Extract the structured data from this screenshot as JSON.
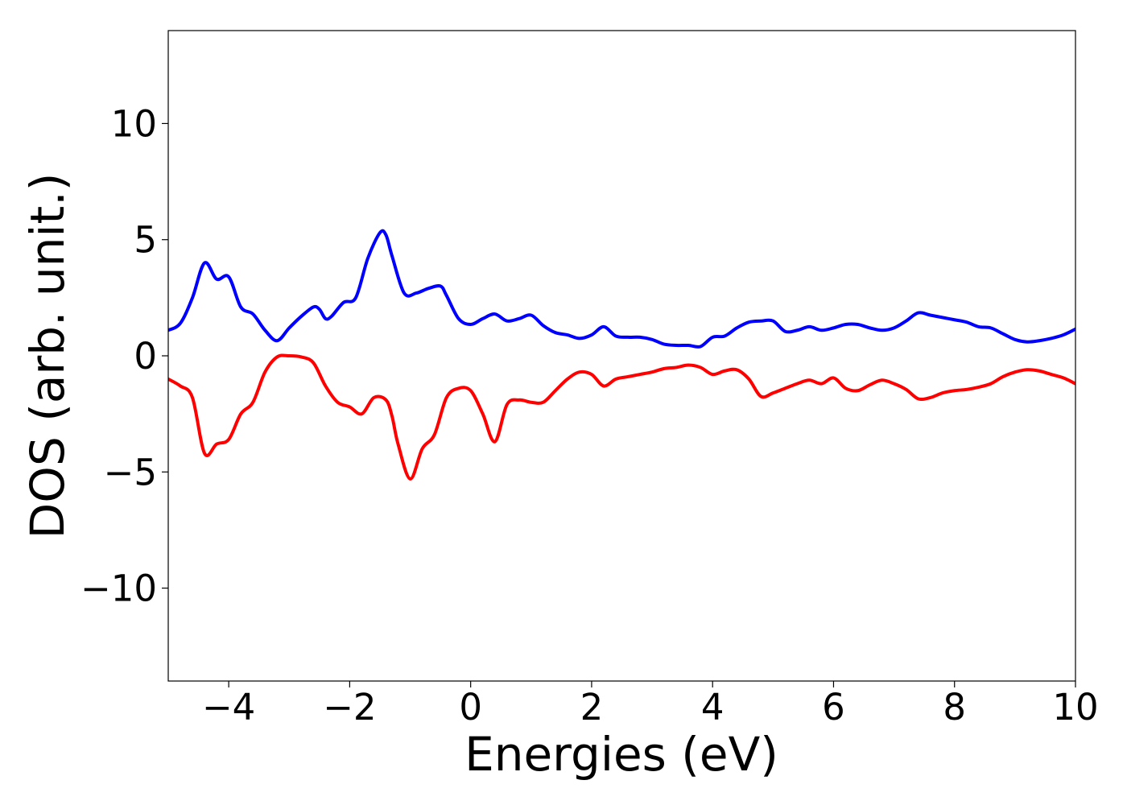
{
  "chart_data": {
    "type": "line",
    "title": "",
    "xlabel": "Energies (eV)",
    "ylabel": "DOS (arb. unit.)",
    "xlim": [
      -5,
      10
    ],
    "ylim": [
      -14,
      14
    ],
    "xticks": [
      -4,
      -2,
      0,
      2,
      4,
      6,
      8,
      10
    ],
    "xtick_labels": [
      "−4",
      "−2",
      "0",
      "2",
      "4",
      "6",
      "8",
      "10"
    ],
    "yticks": [
      -10,
      -5,
      0,
      5,
      10
    ],
    "ytick_labels": [
      "−10",
      "−5",
      "0",
      "5",
      "10"
    ],
    "grid": false,
    "legend": "none",
    "series": [
      {
        "color": "#0000ff",
        "x": [
          -5.0,
          -4.8,
          -4.6,
          -4.4,
          -4.2,
          -4.0,
          -3.8,
          -3.6,
          -3.4,
          -3.2,
          -3.0,
          -2.8,
          -2.6,
          -2.5,
          -2.4,
          -2.3,
          -2.1,
          -1.9,
          -1.7,
          -1.5,
          -1.4,
          -1.3,
          -1.1,
          -0.9,
          -0.7,
          -0.5,
          -0.4,
          -0.2,
          0.0,
          0.2,
          0.4,
          0.6,
          0.8,
          1.0,
          1.2,
          1.4,
          1.6,
          1.8,
          2.0,
          2.2,
          2.4,
          2.6,
          2.8,
          3.0,
          3.2,
          3.4,
          3.6,
          3.8,
          4.0,
          4.2,
          4.4,
          4.6,
          4.8,
          5.0,
          5.2,
          5.4,
          5.6,
          5.8,
          6.0,
          6.2,
          6.4,
          6.6,
          6.8,
          7.0,
          7.2,
          7.4,
          7.6,
          7.8,
          8.0,
          8.2,
          8.4,
          8.6,
          8.8,
          9.0,
          9.2,
          9.4,
          9.6,
          9.8,
          10.0
        ],
        "y": [
          1.1,
          1.4,
          2.5,
          4.0,
          3.3,
          3.4,
          2.1,
          1.8,
          1.1,
          0.65,
          1.2,
          1.7,
          2.1,
          2.0,
          1.6,
          1.7,
          2.3,
          2.5,
          4.2,
          5.3,
          5.2,
          4.3,
          2.7,
          2.7,
          2.9,
          3.0,
          2.6,
          1.6,
          1.35,
          1.6,
          1.8,
          1.5,
          1.6,
          1.75,
          1.3,
          1.0,
          0.9,
          0.75,
          0.9,
          1.25,
          0.85,
          0.8,
          0.8,
          0.7,
          0.5,
          0.45,
          0.45,
          0.4,
          0.8,
          0.85,
          1.2,
          1.45,
          1.5,
          1.5,
          1.05,
          1.1,
          1.25,
          1.1,
          1.2,
          1.35,
          1.35,
          1.2,
          1.1,
          1.2,
          1.5,
          1.85,
          1.75,
          1.65,
          1.55,
          1.45,
          1.25,
          1.2,
          0.95,
          0.7,
          0.6,
          0.65,
          0.75,
          0.9,
          1.15
        ]
      },
      {
        "color": "#ff0000",
        "x": [
          -5.0,
          -4.8,
          -4.6,
          -4.4,
          -4.2,
          -4.0,
          -3.8,
          -3.6,
          -3.4,
          -3.2,
          -3.0,
          -2.8,
          -2.6,
          -2.4,
          -2.2,
          -2.0,
          -1.8,
          -1.6,
          -1.4,
          -1.3,
          -1.2,
          -1.0,
          -0.8,
          -0.6,
          -0.4,
          -0.2,
          0.0,
          0.2,
          0.4,
          0.6,
          0.8,
          1.0,
          1.2,
          1.4,
          1.6,
          1.8,
          2.0,
          2.2,
          2.4,
          2.6,
          2.8,
          3.0,
          3.2,
          3.4,
          3.6,
          3.8,
          4.0,
          4.2,
          4.4,
          4.6,
          4.8,
          5.0,
          5.2,
          5.4,
          5.6,
          5.8,
          6.0,
          6.2,
          6.4,
          6.6,
          6.8,
          7.0,
          7.2,
          7.4,
          7.6,
          7.8,
          8.0,
          8.2,
          8.4,
          8.6,
          8.8,
          9.0,
          9.2,
          9.4,
          9.6,
          9.8,
          10.0
        ],
        "y": [
          -1.0,
          -1.3,
          -1.8,
          -4.2,
          -3.8,
          -3.6,
          -2.5,
          -2.0,
          -0.7,
          -0.05,
          0.0,
          -0.05,
          -0.3,
          -1.3,
          -2.0,
          -2.2,
          -2.5,
          -1.8,
          -1.9,
          -2.6,
          -3.8,
          -5.3,
          -4.0,
          -3.4,
          -1.8,
          -1.4,
          -1.5,
          -2.5,
          -3.7,
          -2.1,
          -1.9,
          -2.0,
          -2.0,
          -1.5,
          -1.0,
          -0.7,
          -0.8,
          -1.3,
          -1.0,
          -0.9,
          -0.8,
          -0.7,
          -0.55,
          -0.5,
          -0.4,
          -0.5,
          -0.8,
          -0.65,
          -0.6,
          -1.0,
          -1.75,
          -1.6,
          -1.4,
          -1.2,
          -1.05,
          -1.2,
          -0.95,
          -1.4,
          -1.5,
          -1.25,
          -1.05,
          -1.2,
          -1.45,
          -1.85,
          -1.8,
          -1.6,
          -1.5,
          -1.45,
          -1.35,
          -1.2,
          -0.9,
          -0.7,
          -0.6,
          -0.65,
          -0.8,
          -0.95,
          -1.2
        ]
      }
    ]
  }
}
